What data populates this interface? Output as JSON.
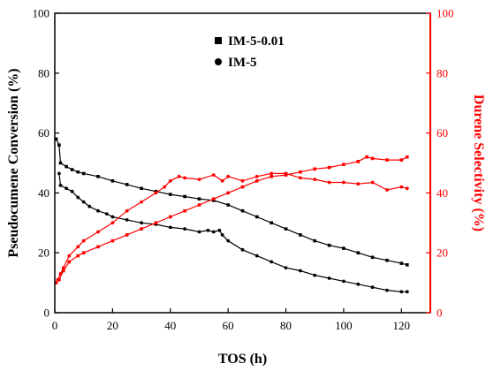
{
  "chart_data": {
    "type": "scatter",
    "xlabel": "TOS (h)",
    "ylabel_left": "Pseudocumene Conversion (%)",
    "ylabel_right": "Durene Selectivity (%)",
    "xlim": [
      0,
      130
    ],
    "ylim_left": [
      0,
      100
    ],
    "ylim_right": [
      0,
      100
    ],
    "x_ticks": [
      0,
      20,
      40,
      60,
      80,
      100,
      120
    ],
    "y_ticks_left": [
      0,
      20,
      40,
      60,
      80,
      100
    ],
    "y_ticks_right": [
      0,
      20,
      40,
      60,
      80,
      100
    ],
    "legend_position": "top-center",
    "colors": {
      "conversion": "#000000",
      "selectivity": "#ff0000"
    },
    "legend": [
      {
        "name": "IM-5-0.01",
        "marker": "square"
      },
      {
        "name": "IM-5",
        "marker": "circle"
      }
    ],
    "series": [
      {
        "name": "IM-5-0.01",
        "axis": "left",
        "metric": "conversion",
        "marker": "square",
        "x": [
          0.5,
          1.5,
          2,
          4,
          6,
          8,
          10,
          15,
          20,
          25,
          30,
          35,
          40,
          45,
          50,
          55,
          60,
          65,
          70,
          75,
          80,
          85,
          90,
          95,
          100,
          105,
          110,
          115,
          120,
          122
        ],
        "y": [
          58,
          56,
          50,
          48.8,
          47.8,
          47,
          46.5,
          45.5,
          44,
          42.8,
          41.5,
          40.5,
          39.5,
          38.8,
          38,
          37.5,
          36,
          34,
          32,
          30,
          28,
          26,
          24,
          22.5,
          21.5,
          20,
          18.5,
          17.5,
          16.5,
          16
        ]
      },
      {
        "name": "IM-5",
        "axis": "left",
        "metric": "conversion",
        "marker": "circle",
        "x": [
          1.5,
          2,
          4,
          6,
          8,
          10,
          12,
          15,
          18,
          20,
          25,
          30,
          35,
          40,
          45,
          50,
          53,
          55,
          57,
          58,
          60,
          65,
          70,
          75,
          80,
          85,
          90,
          95,
          100,
          105,
          110,
          115,
          120,
          122
        ],
        "y": [
          46.5,
          42.5,
          41.5,
          40.5,
          38.5,
          37,
          35.5,
          34,
          33,
          32,
          31,
          30,
          29.5,
          28.5,
          28,
          27,
          27.5,
          27,
          27.5,
          26,
          24,
          21,
          19,
          17,
          15,
          14,
          12.5,
          11.5,
          10.5,
          9.5,
          8.5,
          7.5,
          7,
          7
        ]
      },
      {
        "name": "IM-5-0.01",
        "axis": "right",
        "metric": "selectivity",
        "marker": "square",
        "x": [
          0.5,
          1.5,
          3,
          5,
          8,
          10,
          15,
          20,
          25,
          30,
          35,
          40,
          45,
          50,
          55,
          60,
          65,
          70,
          75,
          80,
          85,
          90,
          95,
          100,
          105,
          108,
          110,
          115,
          120,
          122
        ],
        "y": [
          10,
          11,
          14,
          17,
          19,
          20,
          22,
          24,
          26,
          28,
          30,
          32,
          34,
          36,
          38,
          40,
          42,
          44,
          45.5,
          46,
          47,
          48,
          48.5,
          49.5,
          50.5,
          52,
          51.5,
          51,
          51,
          52
        ]
      },
      {
        "name": "IM-5",
        "axis": "right",
        "metric": "selectivity",
        "marker": "circle",
        "x": [
          1,
          2,
          3,
          5,
          8,
          10,
          15,
          20,
          25,
          30,
          35,
          38,
          40,
          43,
          45,
          50,
          55,
          58,
          60,
          65,
          70,
          75,
          80,
          85,
          90,
          95,
          100,
          105,
          110,
          115,
          120,
          122
        ],
        "y": [
          11,
          13,
          15,
          19,
          22,
          24,
          27,
          30,
          34,
          37,
          40,
          42,
          44,
          45.5,
          45,
          44.5,
          46,
          44,
          45.5,
          44,
          45.5,
          46.5,
          46.5,
          45,
          44.5,
          43.5,
          43.5,
          43,
          43.5,
          41,
          42,
          41.5
        ]
      }
    ]
  }
}
